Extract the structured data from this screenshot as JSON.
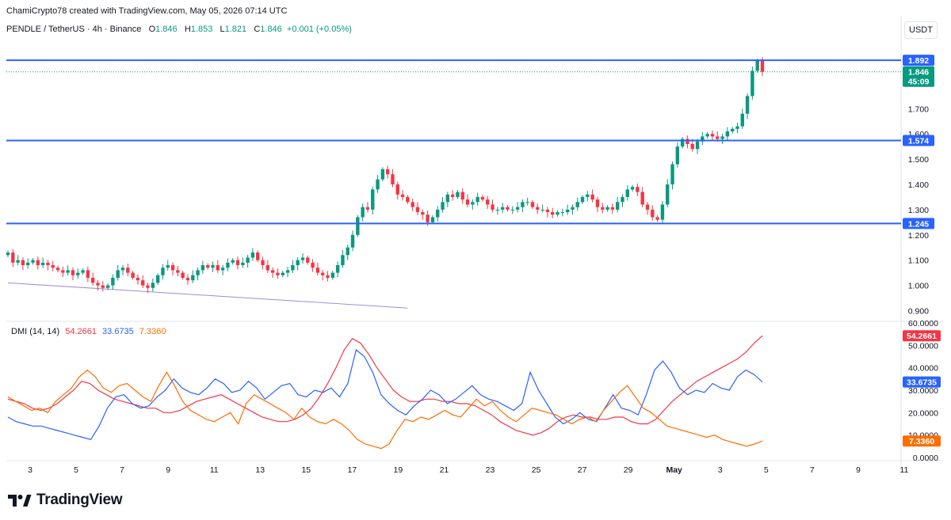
{
  "header": {
    "attribution": "ChamiCrypto78 created with TradingView.com, May 05, 2026 07:14 UTC"
  },
  "symbol": {
    "name": "PENDLE / TetherUS · 4h · Binance",
    "o_label": "O",
    "o": "1.846",
    "h_label": "H",
    "h": "1.853",
    "l_label": "L",
    "l": "1.821",
    "c_label": "C",
    "c": "1.846",
    "change": "+0.001 (+0.05%)"
  },
  "currency_button": "USDT",
  "colors": {
    "up": "#089981",
    "down": "#f23645",
    "level_line": "#2962ff",
    "plus_di": "#2962ff",
    "minus_di": "#ff6d00",
    "adx": "#f23645",
    "trendline": "#9c8bd9"
  },
  "dmi": {
    "title": "DMI (14, 14)",
    "adx": "54.2661",
    "plus_di": "33.6735",
    "minus_di": "7.3360"
  },
  "price_tags": {
    "current": "1.846",
    "countdown": "45:09"
  },
  "chart_data": [
    {
      "type": "candlestick",
      "ylim": [
        0.87,
        1.98
      ],
      "y_ticks": [
        "0.900",
        "1.000",
        "1.100",
        "1.200",
        "1.300",
        "1.400",
        "1.500",
        "1.600",
        "1.700"
      ],
      "levels": [
        {
          "value": 1.892,
          "label": "1.892"
        },
        {
          "value": 1.574,
          "label": "1.574"
        },
        {
          "value": 1.245,
          "label": "1.245"
        }
      ],
      "current_price": 1.846,
      "trendline": [
        [
          0,
          1.01
        ],
        [
          80,
          0.91
        ]
      ],
      "closes": [
        1.13,
        1.09,
        1.1,
        1.08,
        1.09,
        1.1,
        1.08,
        1.09,
        1.08,
        1.07,
        1.06,
        1.05,
        1.06,
        1.04,
        1.05,
        1.06,
        1.03,
        1.01,
        1.0,
        0.99,
        1.0,
        1.03,
        1.06,
        1.07,
        1.05,
        1.03,
        1.02,
        1.0,
        0.99,
        1.01,
        1.04,
        1.07,
        1.08,
        1.06,
        1.05,
        1.03,
        1.02,
        1.04,
        1.06,
        1.08,
        1.07,
        1.08,
        1.06,
        1.07,
        1.09,
        1.1,
        1.08,
        1.09,
        1.11,
        1.13,
        1.1,
        1.08,
        1.06,
        1.05,
        1.04,
        1.05,
        1.06,
        1.08,
        1.1,
        1.11,
        1.09,
        1.07,
        1.05,
        1.04,
        1.03,
        1.05,
        1.08,
        1.12,
        1.15,
        1.2,
        1.27,
        1.31,
        1.3,
        1.38,
        1.42,
        1.46,
        1.44,
        1.4,
        1.36,
        1.35,
        1.33,
        1.31,
        1.29,
        1.28,
        1.25,
        1.27,
        1.3,
        1.33,
        1.36,
        1.35,
        1.37,
        1.34,
        1.32,
        1.33,
        1.35,
        1.34,
        1.32,
        1.3,
        1.3,
        1.31,
        1.3,
        1.3,
        1.31,
        1.33,
        1.33,
        1.31,
        1.3,
        1.3,
        1.29,
        1.28,
        1.29,
        1.29,
        1.3,
        1.31,
        1.33,
        1.35,
        1.36,
        1.34,
        1.31,
        1.3,
        1.31,
        1.3,
        1.33,
        1.35,
        1.38,
        1.39,
        1.37,
        1.32,
        1.3,
        1.27,
        1.26,
        1.32,
        1.4,
        1.48,
        1.55,
        1.58,
        1.56,
        1.54,
        1.57,
        1.59,
        1.6,
        1.59,
        1.58,
        1.59,
        1.61,
        1.62,
        1.63,
        1.68,
        1.75,
        1.85,
        1.89,
        1.846
      ]
    },
    {
      "type": "line",
      "title": "DMI (14, 14)",
      "ylim": [
        0,
        60
      ],
      "y_ticks": [
        "0.0000",
        "10.0000",
        "20.0000",
        "30.0000",
        "40.0000",
        "50.0000",
        "60.0000"
      ],
      "series": [
        {
          "name": "ADX",
          "color": "#f23645",
          "values": [
            26,
            25,
            24,
            22,
            21,
            22,
            24,
            27,
            30,
            34,
            33,
            30,
            28,
            26,
            25,
            24,
            23,
            22,
            22,
            20,
            20,
            21,
            23,
            25,
            26,
            27,
            28,
            26,
            24,
            22,
            20,
            18,
            17,
            16,
            16,
            17,
            19,
            22,
            27,
            33,
            40,
            48,
            53,
            51,
            46,
            40,
            35,
            30,
            27,
            25,
            25,
            26,
            26,
            25,
            25,
            24,
            24,
            23,
            21,
            19,
            16,
            14,
            12,
            11,
            10,
            11,
            13,
            16,
            18,
            19,
            18,
            18,
            17,
            17,
            18,
            18,
            16,
            15,
            15,
            17,
            21,
            25,
            28,
            31,
            34,
            36,
            38,
            40,
            42,
            44,
            47,
            51,
            54.27
          ]
        },
        {
          "name": "+DI",
          "color": "#2962ff",
          "values": [
            18,
            16,
            15,
            14,
            14,
            13,
            12,
            11,
            10,
            9,
            8,
            14,
            22,
            27,
            28,
            24,
            22,
            23,
            27,
            30,
            35,
            31,
            29,
            28,
            31,
            35,
            33,
            29,
            30,
            34,
            31,
            26,
            29,
            32,
            33,
            28,
            27,
            30,
            29,
            31,
            27,
            33,
            48,
            45,
            38,
            28,
            24,
            21,
            19,
            23,
            26,
            30,
            28,
            24,
            26,
            29,
            32,
            28,
            26,
            25,
            23,
            21,
            24,
            38,
            30,
            24,
            18,
            15,
            17,
            20,
            17,
            16,
            22,
            28,
            22,
            21,
            19,
            28,
            39,
            43,
            38,
            31,
            28,
            30,
            29,
            33,
            31,
            30,
            36,
            39,
            37,
            33.67
          ]
        },
        {
          "name": "-DI",
          "color": "#ff6d00",
          "values": [
            27,
            25,
            23,
            21,
            22,
            20,
            25,
            28,
            31,
            36,
            39,
            36,
            31,
            29,
            32,
            33,
            30,
            27,
            25,
            32,
            38,
            32,
            25,
            21,
            19,
            17,
            16,
            18,
            20,
            15,
            24,
            28,
            26,
            24,
            22,
            20,
            17,
            22,
            18,
            16,
            15,
            17,
            15,
            12,
            8,
            6,
            5,
            4,
            6,
            12,
            17,
            16,
            18,
            17,
            19,
            21,
            19,
            18,
            22,
            26,
            23,
            25,
            21,
            18,
            16,
            19,
            22,
            21,
            20,
            19,
            17,
            15,
            17,
            18,
            16,
            21,
            25,
            29,
            32,
            27,
            22,
            20,
            17,
            14,
            13,
            12,
            11,
            10,
            9,
            10,
            8,
            7,
            6,
            5,
            6,
            7.34
          ]
        }
      ]
    }
  ],
  "x_axis": {
    "labels": [
      "3",
      "5",
      "7",
      "9",
      "11",
      "13",
      "15",
      "17",
      "19",
      "21",
      "23",
      "25",
      "27",
      "29",
      "May",
      "3",
      "5",
      "7",
      "9",
      "11"
    ]
  },
  "footer": {
    "brand": "TradingView"
  }
}
